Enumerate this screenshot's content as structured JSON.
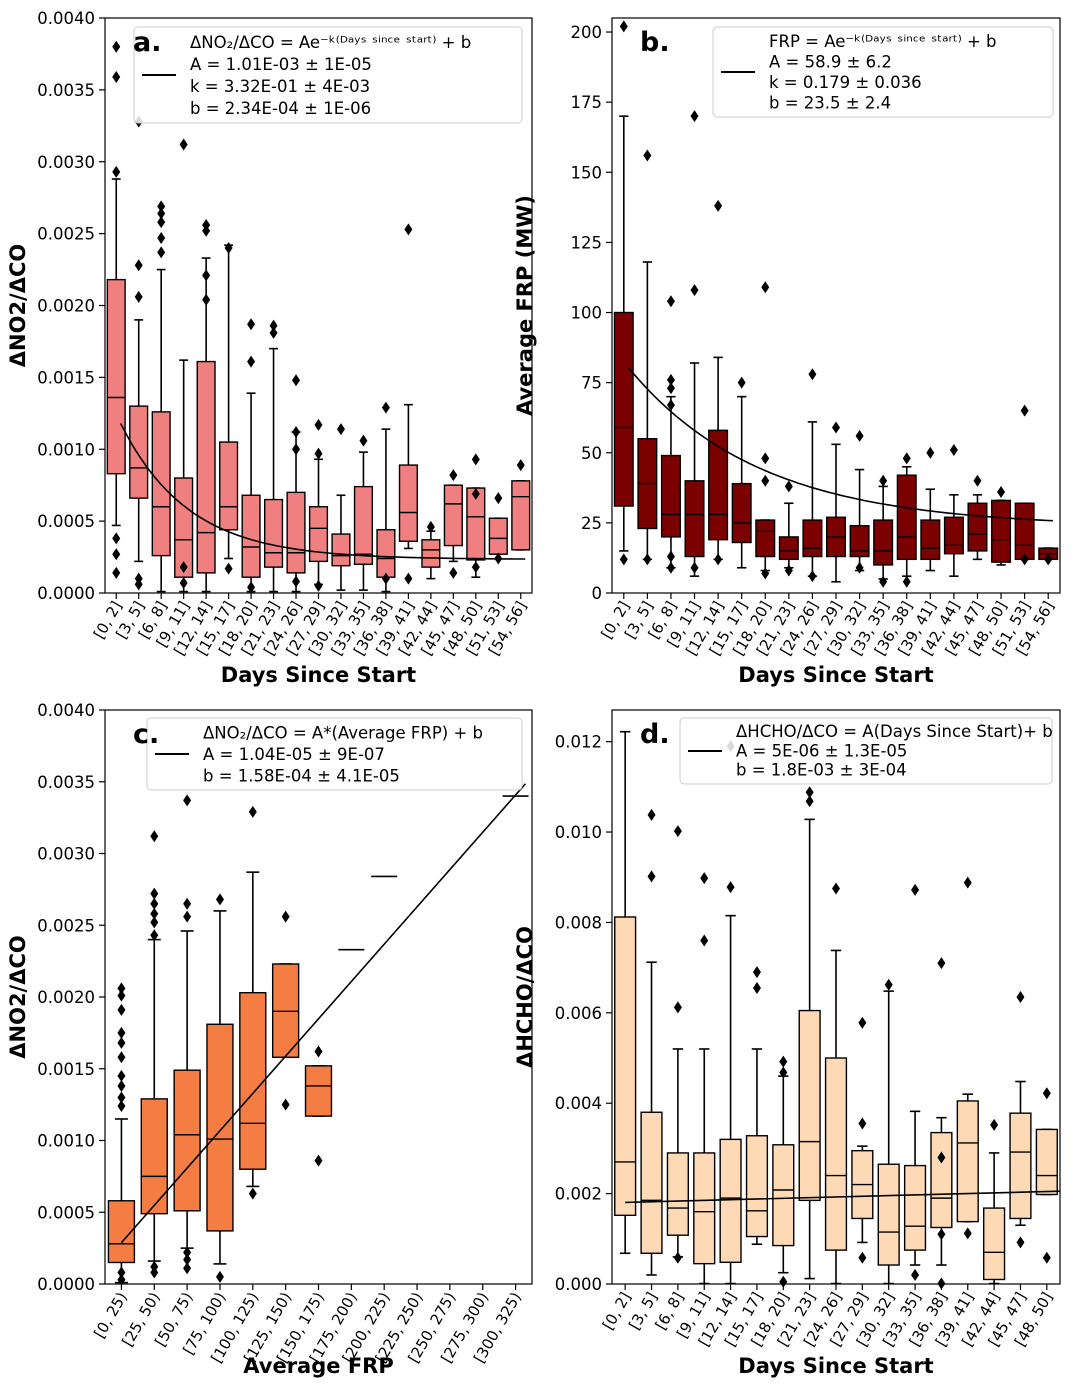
{
  "chart_data": [
    {
      "panel": "a.",
      "type": "box",
      "xlabel": "Days Since Start",
      "ylabel": "ΔNO2/ΔCO",
      "ylim": [
        0,
        0.004
      ],
      "yticks": [
        "0.0000",
        "0.0005",
        "0.0010",
        "0.0015",
        "0.0020",
        "0.0025",
        "0.0030",
        "0.0035",
        "0.0040"
      ],
      "categories": [
        "[0, 2]",
        "[3, 5]",
        "[6, 8]",
        "[9, 11]",
        "[12, 14]",
        "[15, 17]",
        "[18, 20]",
        "[21, 23]",
        "[24, 26]",
        "[27, 29]",
        "[30, 32]",
        "[33, 35]",
        "[36, 38]",
        "[39, 41]",
        "[42, 44]",
        "[45, 47]",
        "[48, 50]",
        "[51, 53]",
        "[54, 56]"
      ],
      "box_color": "#f08080",
      "boxes": [
        {
          "q1": 0.00083,
          "med": 0.00136,
          "q3": 0.00218,
          "wlo": 0.00047,
          "whi": 0.00288,
          "out": [
            0.0038,
            0.00359,
            0.00293,
            0.00038,
            0.00027,
            0.00014
          ]
        },
        {
          "q1": 0.00066,
          "med": 0.00087,
          "q3": 0.0013,
          "wlo": 0.00022,
          "whi": 0.0019,
          "out": [
            0.00328,
            0.00228,
            0.00206,
            0.0001,
            6e-05
          ]
        },
        {
          "q1": 0.00026,
          "med": 0.0006,
          "q3": 0.00126,
          "wlo": 1e-05,
          "whi": 0.00225,
          "out": [
            0.00269,
            0.00264,
            0.00258,
            0.00247,
            0.00237
          ]
        },
        {
          "q1": 0.00011,
          "med": 0.00037,
          "q3": 0.0008,
          "wlo": 1e-05,
          "whi": 0.00162,
          "out": [
            0.00312,
            0.00018,
            7e-05
          ]
        },
        {
          "q1": 0.00014,
          "med": 0.00042,
          "q3": 0.00161,
          "wlo": 1e-05,
          "whi": 0.00233,
          "out": [
            0.00256,
            0.00252,
            0.00221,
            0.00204
          ]
        },
        {
          "q1": 0.00044,
          "med": 0.0006,
          "q3": 0.00105,
          "wlo": 0.00024,
          "whi": 0.00242,
          "out": [
            0.0024,
            0.00017
          ]
        },
        {
          "q1": 0.00011,
          "med": 0.00032,
          "q3": 0.00068,
          "wlo": 1e-05,
          "whi": 0.00139,
          "out": [
            0.00187,
            0.00161,
            4e-05
          ]
        },
        {
          "q1": 0.00018,
          "med": 0.00028,
          "q3": 0.00065,
          "wlo": 1e-05,
          "whi": 0.0017,
          "out": [
            0.00186,
            0.00181
          ]
        },
        {
          "q1": 0.00014,
          "med": 0.00028,
          "q3": 0.0007,
          "wlo": 1e-05,
          "whi": 0.00112,
          "out": [
            0.00148,
            0.00112,
            0.001,
            8e-05
          ]
        },
        {
          "q1": 0.00022,
          "med": 0.00045,
          "q3": 0.0006,
          "wlo": 6e-05,
          "whi": 0.00093,
          "out": [
            0.00117,
            0.00097,
            5e-05
          ]
        },
        {
          "q1": 0.00019,
          "med": 0.00026,
          "q3": 0.00041,
          "wlo": 2e-05,
          "whi": 0.00068,
          "out": [
            0.00114
          ]
        },
        {
          "q1": 0.0002,
          "med": 0.00027,
          "q3": 0.00074,
          "wlo": 2e-05,
          "whi": 0.00098,
          "out": [
            0.00106
          ]
        },
        {
          "q1": 0.00011,
          "med": 0.00024,
          "q3": 0.00044,
          "wlo": 1e-05,
          "whi": 0.00114,
          "out": [
            0.00129,
            0.0001
          ]
        },
        {
          "q1": 0.00036,
          "med": 0.00056,
          "q3": 0.00089,
          "wlo": 0.00031,
          "whi": 0.00131,
          "out": [
            0.00253,
            0.0001
          ]
        },
        {
          "q1": 0.00018,
          "med": 0.0003,
          "q3": 0.00037,
          "wlo": 0.0001,
          "whi": 0.00043,
          "out": [
            0.00046
          ]
        },
        {
          "q1": 0.00033,
          "med": 0.00062,
          "q3": 0.00075,
          "wlo": 0.00022,
          "whi": 0.00075,
          "out": [
            0.00082,
            0.00014
          ]
        },
        {
          "q1": 0.00023,
          "med": 0.00053,
          "q3": 0.00073,
          "wlo": 0.00011,
          "whi": 0.00073,
          "out": [
            0.00093,
            0.00069,
            0.00018
          ]
        },
        {
          "q1": 0.00027,
          "med": 0.00038,
          "q3": 0.00052,
          "wlo": 0.00027,
          "whi": 0.00052,
          "out": [
            0.00066,
            0.00024
          ]
        },
        {
          "q1": 0.0003,
          "med": 0.00067,
          "q3": 0.00078,
          "wlo": 0.0003,
          "whi": 0.00078,
          "out": [
            0.00089
          ]
        }
      ],
      "fit": {
        "type": "exp",
        "A": 0.00101,
        "k": 0.332,
        "b": 0.000234,
        "x_start": 0.2,
        "x_end": 18.2
      },
      "legend_lines": [
        "ΔNO₂/ΔCO = Ae⁻ᵏ⁽ᴰᵃʸˢ ˢⁱⁿᶜᵉ ˢᵗᵃʳᵗ⁾ + b",
        "A = 1.01E-03 ± 1E-05",
        "k = 3.32E-01 ± 4E-03",
        "b = 2.34E-04 ± 1E-06"
      ]
    },
    {
      "panel": "b.",
      "type": "box",
      "xlabel": "Days Since Start",
      "ylabel": "Average FRP (MW)",
      "ylim": [
        0,
        205
      ],
      "yticks": [
        "0",
        "25",
        "50",
        "75",
        "100",
        "125",
        "150",
        "175",
        "200"
      ],
      "categories": [
        "[0, 2]",
        "[3, 5]",
        "[6, 8]",
        "[9, 11]",
        "[12, 14]",
        "[15, 17]",
        "[18, 20]",
        "[21, 23]",
        "[24, 26]",
        "[27, 29]",
        "[30, 32]",
        "[33, 35]",
        "[36, 38]",
        "[39, 41]",
        "[42, 44]",
        "[45, 47]",
        "[48, 50]",
        "[51, 53]",
        "[54, 56]"
      ],
      "box_color": "#7b0000",
      "boxes": [
        {
          "q1": 31,
          "med": 59,
          "q3": 100,
          "wlo": 15,
          "whi": 170,
          "out": [
            202,
            12
          ]
        },
        {
          "q1": 23,
          "med": 39,
          "q3": 55,
          "wlo": 12,
          "whi": 118,
          "out": [
            156,
            12
          ]
        },
        {
          "q1": 20,
          "med": 28,
          "q3": 49,
          "wlo": 9,
          "whi": 70,
          "out": [
            104,
            76,
            73,
            67,
            13,
            9
          ]
        },
        {
          "q1": 13,
          "med": 28,
          "q3": 40,
          "wlo": 6,
          "whi": 82,
          "out": [
            170,
            108,
            9
          ]
        },
        {
          "q1": 19,
          "med": 28,
          "q3": 58,
          "wlo": 12,
          "whi": 84,
          "out": [
            138,
            12
          ]
        },
        {
          "q1": 18,
          "med": 25,
          "q3": 39,
          "wlo": 9,
          "whi": 70,
          "out": [
            75
          ]
        },
        {
          "q1": 13,
          "med": 22,
          "q3": 26,
          "wlo": 8,
          "whi": 26,
          "out": [
            109,
            48,
            40,
            7
          ]
        },
        {
          "q1": 12,
          "med": 15,
          "q3": 20,
          "wlo": 9,
          "whi": 32,
          "out": [
            38,
            8
          ]
        },
        {
          "q1": 13,
          "med": 16,
          "q3": 26,
          "wlo": 6,
          "whi": 61,
          "out": [
            78,
            6
          ]
        },
        {
          "q1": 13,
          "med": 20,
          "q3": 27,
          "wlo": 4,
          "whi": 53,
          "out": [
            59
          ]
        },
        {
          "q1": 13,
          "med": 15,
          "q3": 24,
          "wlo": 8,
          "whi": 44,
          "out": [
            56,
            9
          ]
        },
        {
          "q1": 10,
          "med": 15,
          "q3": 26,
          "wlo": 5,
          "whi": 38,
          "out": [
            40,
            4
          ]
        },
        {
          "q1": 12,
          "med": 20,
          "q3": 42,
          "wlo": 6,
          "whi": 45,
          "out": [
            48,
            4
          ]
        },
        {
          "q1": 12,
          "med": 16,
          "q3": 26,
          "wlo": 8,
          "whi": 37,
          "out": [
            50
          ]
        },
        {
          "q1": 14,
          "med": 17,
          "q3": 27,
          "wlo": 6,
          "whi": 35,
          "out": [
            51
          ]
        },
        {
          "q1": 15,
          "med": 21,
          "q3": 32,
          "wlo": 12,
          "whi": 35,
          "out": [
            40
          ]
        },
        {
          "q1": 11,
          "med": 19,
          "q3": 33,
          "wlo": 10,
          "whi": 33,
          "out": [
            36
          ]
        },
        {
          "q1": 12,
          "med": 17,
          "q3": 32,
          "wlo": 12,
          "whi": 32,
          "out": [
            65,
            12
          ]
        },
        {
          "q1": 12,
          "med": 14,
          "q3": 16,
          "wlo": 12,
          "whi": 16,
          "out": [
            12
          ]
        }
      ],
      "fit": {
        "type": "exp",
        "A": 58.9,
        "k": 0.179,
        "b": 23.5,
        "x_start": 0.2,
        "x_end": 18.2
      },
      "legend_lines": [
        "FRP =  Ae⁻ᵏ⁽ᴰᵃʸˢ ˢⁱⁿᶜᵉ ˢᵗᵃʳᵗ⁾ + b",
        "A = 58.9 ± 6.2",
        "k = 0.179 ± 0.036",
        "b = 23.5 ± 2.4"
      ]
    },
    {
      "panel": "c.",
      "type": "box",
      "xlabel": "Average FRP",
      "ylabel": "ΔNO2/ΔCO",
      "ylim": [
        0,
        0.004
      ],
      "yticks": [
        "0.0000",
        "0.0005",
        "0.0010",
        "0.0015",
        "0.0020",
        "0.0025",
        "0.0030",
        "0.0035",
        "0.0040"
      ],
      "categories": [
        "[0, 25)",
        "[25, 50)",
        "[50, 75)",
        "[75, 100)",
        "[100, 125)",
        "[125, 150)",
        "[150, 175)",
        "[175, 200)",
        "[200, 225)",
        "[225, 250)",
        "[250, 275)",
        "[275, 300)",
        "[300, 325)"
      ],
      "box_color": "#f47d44",
      "boxes": [
        {
          "q1": 0.00015,
          "med": 0.00028,
          "q3": 0.00058,
          "wlo": 1e-05,
          "whi": 0.00115,
          "out": [
            0.00206,
            0.00201,
            0.00191,
            0.00175,
            0.00168,
            0.00158,
            0.00145,
            0.00138,
            0.0013,
            0.00124,
            8e-05,
            3e-05
          ]
        },
        {
          "q1": 0.00049,
          "med": 0.00075,
          "q3": 0.00129,
          "wlo": 0.00016,
          "whi": 0.0024,
          "out": [
            0.00312,
            0.00272,
            0.00265,
            0.00258,
            0.00252,
            0.00243,
            0.00012,
            8e-05
          ]
        },
        {
          "q1": 0.00051,
          "med": 0.00104,
          "q3": 0.00149,
          "wlo": 0.00025,
          "whi": 0.00246,
          "out": [
            0.00337,
            0.00265,
            0.00256,
            0.00022,
            0.00017,
            0.00011
          ]
        },
        {
          "q1": 0.00037,
          "med": 0.00101,
          "q3": 0.00181,
          "wlo": 0.00014,
          "whi": 0.0026,
          "out": [
            0.00268,
            5e-05
          ]
        },
        {
          "q1": 0.0008,
          "med": 0.00112,
          "q3": 0.00203,
          "wlo": 0.00068,
          "whi": 0.00287,
          "out": [
            0.00329,
            0.00063
          ]
        },
        {
          "q1": 0.00158,
          "med": 0.0019,
          "q3": 0.00223,
          "wlo": 0.00158,
          "whi": 0.00223,
          "out": [
            0.00256,
            0.00125
          ]
        },
        {
          "q1": 0.00117,
          "med": 0.00138,
          "q3": 0.00152,
          "wlo": 0.00117,
          "whi": 0.00152,
          "out": [
            0.00162,
            0.00086
          ]
        },
        {
          "single": 0.00233
        },
        {
          "single": 0.00284
        },
        null,
        null,
        null,
        {
          "single": 0.0034
        }
      ],
      "fit": {
        "type": "linear",
        "A": 1.04e-05,
        "b": 0.000158,
        "x_start": 12.5,
        "x_end": 320
      },
      "legend_lines": [
        "ΔNO₂/ΔCO = A*(Average FRP) + b",
        "A = 1.04E-05 ± 9E-07",
        "b = 1.58E-04 ± 4.1E-05"
      ]
    },
    {
      "panel": "d.",
      "type": "box",
      "xlabel": "Days Since Start",
      "ylabel": "ΔHCHO/ΔCO",
      "ylim": [
        0,
        0.0127
      ],
      "yticks": [
        "0.000",
        "0.002",
        "0.004",
        "0.006",
        "0.008",
        "0.010",
        "0.012"
      ],
      "categories": [
        "[0, 2]",
        "[3, 5]",
        "[6, 8]",
        "[9, 11]",
        "[12, 14]",
        "[15, 17]",
        "[18, 20]",
        "[21, 23]",
        "[24, 26]",
        "[27, 29]",
        "[30, 32]",
        "[33, 35]",
        "[36, 38]",
        "[39, 41]",
        "[42, 44]",
        "[45, 47]",
        "[48, 50]"
      ],
      "box_color": "#fdd9b5",
      "boxes": [
        {
          "q1": 0.00152,
          "med": 0.0027,
          "q3": 0.00812,
          "wlo": 0.00068,
          "whi": 0.01222,
          "out": []
        },
        {
          "q1": 0.00068,
          "med": 0.00185,
          "q3": 0.0038,
          "wlo": 0.0002,
          "whi": 0.00712,
          "out": [
            0.01038,
            0.00902
          ]
        },
        {
          "q1": 0.00108,
          "med": 0.00168,
          "q3": 0.0029,
          "wlo": 0.0006,
          "whi": 0.0052,
          "out": [
            0.01002,
            0.00612,
            0.00058
          ]
        },
        {
          "q1": 0.00045,
          "med": 0.0016,
          "q3": 0.0029,
          "wlo": 1e-05,
          "whi": 0.0052,
          "out": [
            0.00898,
            0.0076
          ]
        },
        {
          "q1": 0.00048,
          "med": 0.0019,
          "q3": 0.0032,
          "wlo": 1e-05,
          "whi": 0.00815,
          "out": [
            0.0119,
            0.00878
          ]
        },
        {
          "q1": 0.00105,
          "med": 0.00162,
          "q3": 0.00328,
          "wlo": 0.00088,
          "whi": 0.0052,
          "out": [
            0.0069,
            0.00655
          ]
        },
        {
          "q1": 0.00085,
          "med": 0.00208,
          "q3": 0.00308,
          "wlo": 0.00025,
          "whi": 0.0046,
          "out": [
            0.00492,
            0.00468,
            5e-05
          ]
        },
        {
          "q1": 0.00185,
          "med": 0.00315,
          "q3": 0.00605,
          "wlo": 0.00012,
          "whi": 0.01028,
          "out": [
            0.01088,
            0.01068
          ]
        },
        {
          "q1": 0.00075,
          "med": 0.0024,
          "q3": 0.005,
          "wlo": 1e-05,
          "whi": 0.00738,
          "out": [
            0.00875
          ]
        },
        {
          "q1": 0.00145,
          "med": 0.0022,
          "q3": 0.00295,
          "wlo": 0.00092,
          "whi": 0.00305,
          "out": [
            0.00578,
            0.00355,
            0.00058
          ]
        },
        {
          "q1": 0.00042,
          "med": 0.00115,
          "q3": 0.00265,
          "wlo": 1e-05,
          "whi": 0.00648,
          "out": [
            0.00662
          ]
        },
        {
          "q1": 0.00075,
          "med": 0.00128,
          "q3": 0.00262,
          "wlo": 0.00042,
          "whi": 0.00382,
          "out": [
            0.00872,
            0.0002
          ]
        },
        {
          "q1": 0.00125,
          "med": 0.0019,
          "q3": 0.00335,
          "wlo": 0.00042,
          "whi": 0.00368,
          "out": [
            0.0071,
            0.0028,
            0.0011,
            1e-05
          ]
        },
        {
          "q1": 0.00138,
          "med": 0.00312,
          "q3": 0.00405,
          "wlo": 0.00138,
          "whi": 0.0042,
          "out": [
            0.00888,
            0.00112
          ]
        },
        {
          "q1": 0.0001,
          "med": 0.0007,
          "q3": 0.00168,
          "wlo": 1e-05,
          "whi": 0.0029,
          "out": [
            0.00352
          ]
        },
        {
          "q1": 0.00145,
          "med": 0.00292,
          "q3": 0.00378,
          "wlo": 0.0013,
          "whi": 0.00448,
          "out": [
            0.00635,
            0.00092
          ]
        },
        {
          "q1": 0.00198,
          "med": 0.0024,
          "q3": 0.00342,
          "wlo": 0.00198,
          "whi": 0.00342,
          "out": [
            0.00422,
            0.00058
          ]
        }
      ],
      "fit": {
        "type": "linear",
        "A": 5e-06,
        "b": 0.0018,
        "x_start": 0,
        "x_end": 16.5
      },
      "legend_lines": [
        "ΔHCHO/ΔCO = A(Days Since Start)+ b",
        "A = 5E-06 ± 1.3E-05",
        "b = 1.8E-03 ± 3E-04"
      ]
    }
  ]
}
